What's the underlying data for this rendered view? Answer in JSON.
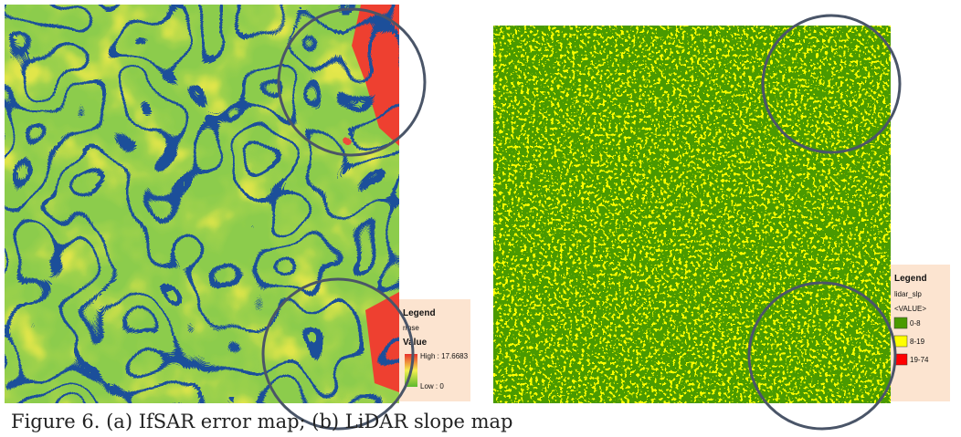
{
  "figure": {
    "panel_a": {
      "legend": {
        "title": "Legend",
        "layer": "rmse",
        "field": "Value",
        "high": "High : 17.6683",
        "low": "Low : 0"
      }
    },
    "panel_b": {
      "legend": {
        "title": "Legend",
        "layer": "lidar_slp",
        "field": "<VALUE>",
        "classes": [
          "0-8",
          "8-19",
          "19-74"
        ]
      }
    },
    "caption": "Figure 6. (a) IfSAR error map; (b) LiDAR slope map"
  }
}
